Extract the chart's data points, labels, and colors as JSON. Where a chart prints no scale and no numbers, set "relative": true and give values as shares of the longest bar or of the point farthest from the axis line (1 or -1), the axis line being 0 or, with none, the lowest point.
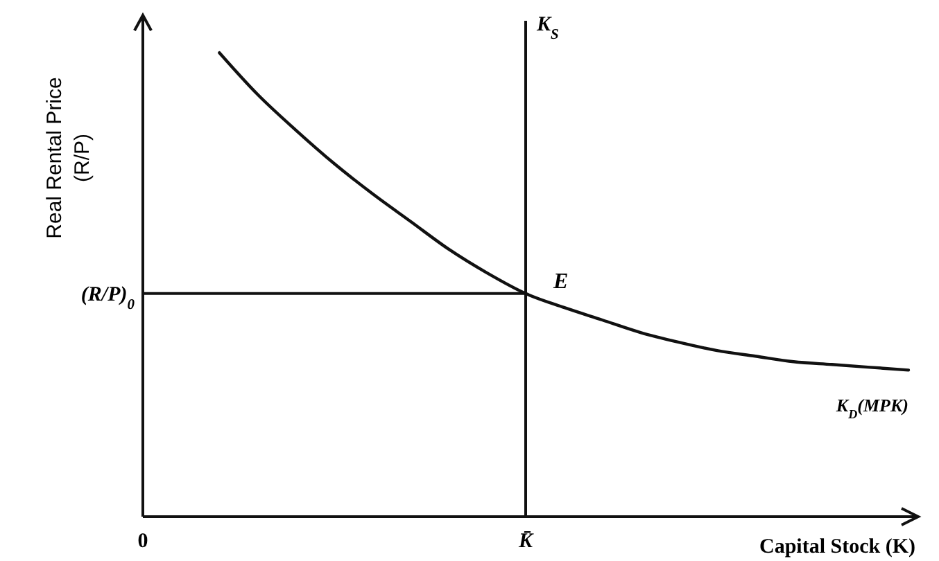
{
  "chart_data": {
    "type": "line",
    "relative": true,
    "xlabel": "Capital Stock (K)",
    "ylabel": "Real Rental Price (R/P)",
    "categories": [
      "0",
      null,
      null,
      null,
      null,
      null,
      null,
      null,
      null,
      null,
      "K̄",
      null,
      null,
      null,
      null,
      null,
      null,
      null,
      null,
      null,
      null
    ],
    "series": [
      {
        "name": "K$_{D}$(MPK)",
        "color": "#111111",
        "values": [
          null,
          null,
          1,
          0.91,
          0.833,
          0.761,
          0.696,
          0.636,
          0.576,
          0.525,
          0.481,
          0.451,
          0.424,
          0.397,
          0.376,
          0.358,
          0.346,
          0.334,
          0.328,
          0.322,
          0.316
        ]
      }
    ],
    "ref_lines": [
      {
        "axis": "x",
        "value": "K̄",
        "label": "K$_{S}$",
        "color": "#111111"
      },
      {
        "axis": "y",
        "value": 0.481,
        "label": "(R/P)$_{0}$",
        "color": "#111111"
      }
    ],
    "annotations": [
      {
        "text": "E",
        "x": "K̄",
        "y": 0.481
      }
    ],
    "marker": "none",
    "line_style": "solid"
  }
}
